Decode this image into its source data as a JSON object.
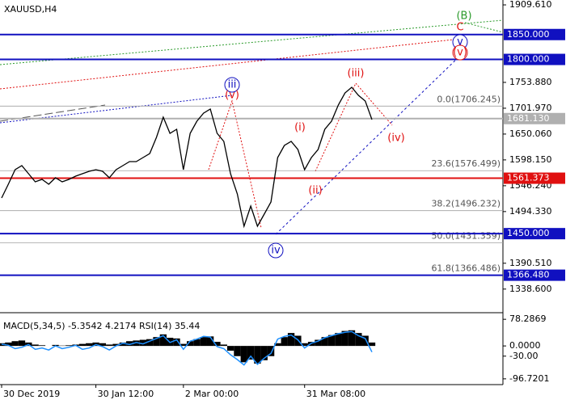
{
  "chart_data": {
    "type": "line",
    "title": "XAUUSD,H4",
    "categories": [
      "30 Dec 2019",
      null,
      null,
      null,
      null,
      null,
      null,
      null,
      null,
      null,
      null,
      null,
      null,
      null,
      "30 Jan 12:00",
      null,
      null,
      null,
      null,
      null,
      null,
      null,
      null,
      null,
      null,
      null,
      null,
      "2 Mar 00:00",
      null,
      null,
      null,
      null,
      null,
      null,
      null,
      null,
      null,
      null,
      null,
      null,
      null,
      null,
      null,
      null,
      null,
      "31 Mar 08:00",
      null,
      null,
      null,
      null,
      null,
      null,
      null,
      null,
      null,
      null
    ],
    "series": [
      {
        "color": "#000000",
        "values": [
          1521.6,
          1549.3,
          1578.5,
          1586.6,
          1570.4,
          1554.2,
          1559.0,
          1549.3,
          1562.3,
          1554.2,
          1559.0,
          1565.5,
          1570.4,
          1575.3,
          1578.5,
          1575.3,
          1562.3,
          1578.5,
          1586.6,
          1594.7,
          1594.7,
          1602.9,
          1611.0,
          1643.4,
          1684.0,
          1651.5,
          1659.7,
          1578.5,
          1651.5,
          1675.9,
          1692.1,
          1700.2,
          1651.5,
          1635.3,
          1570.4,
          1529.8,
          1464.9,
          1505.5,
          1464.9,
          1489.2,
          1513.6,
          1602.9,
          1627.2,
          1635.3,
          1619.1,
          1578.5,
          1602.9,
          1619.1,
          1659.7,
          1675.9,
          1708.3,
          1732.7,
          1744.1,
          1727.8,
          1716.5,
          1679.1
        ]
      }
    ],
    "ylim": [
      1294.4,
      1919.4
    ],
    "yticks": [
      {
        "value": 1909.61,
        "label": "1909.610"
      },
      {
        "value": 1753.88,
        "label": "1753.880"
      },
      {
        "value": 1701.97,
        "label": "1701.970"
      },
      {
        "value": 1650.06,
        "label": "1650.060"
      },
      {
        "value": 1598.15,
        "label": "1598.150"
      },
      {
        "value": 1546.24,
        "label": "1546.240"
      },
      {
        "value": 1494.33,
        "label": "1494.330"
      },
      {
        "value": 1390.51,
        "label": "1390.510"
      },
      {
        "value": 1338.6,
        "label": "1338.600"
      }
    ],
    "levels": [
      {
        "value": 1850,
        "label": "1850.000",
        "color": "#1010c0"
      },
      {
        "value": 1800,
        "label": "1800.000",
        "color": "#1010c0"
      },
      {
        "value": 1681.13,
        "label": "1681.130",
        "color": "#b0b0b0"
      },
      {
        "value": 1561.373,
        "label": "1561.373",
        "color": "#e01010"
      },
      {
        "value": 1450,
        "label": "1450.000",
        "color": "#1010c0"
      },
      {
        "value": 1366.48,
        "label": "1366.480",
        "color": "#1010c0"
      }
    ],
    "fibonacci": [
      {
        "value": 1706.245,
        "label": "0.0(1706.245)"
      },
      {
        "value": 1576.499,
        "label": "23.6(1576.499)"
      },
      {
        "value": 1496.232,
        "label": "38.2(1496.232)"
      },
      {
        "value": 1431.359,
        "label": "50.0(1431.359)"
      },
      {
        "value": 1366.486,
        "label": "61.8(1366.486)"
      }
    ],
    "annotations": [
      "(B)",
      "C",
      "v",
      "(v)",
      "iii",
      "(v)",
      "(iii)",
      "(i)",
      "(ii)",
      "(iv)",
      "iv"
    ],
    "indicator": {
      "type": "bar",
      "label": "MACD(5,34,5) -5.3542 4.2174 RSI(14) 35.44",
      "ylim": [
        -111.3,
        95.3
      ],
      "yticks": [
        78.2869,
        {
          "value": 0,
          "label": "0.0000"
        },
        {
          "value": -30,
          "label": "-30.00"
        },
        -96.7201
      ],
      "values": [
        8,
        10,
        14,
        16,
        10,
        4,
        2,
        0,
        3,
        1,
        2,
        4,
        6,
        8,
        10,
        8,
        4,
        6,
        10,
        14,
        16,
        18,
        20,
        26,
        34,
        24,
        22,
        6,
        14,
        20,
        26,
        28,
        12,
        4,
        -14,
        -30,
        -48,
        -40,
        -52,
        -42,
        -30,
        8,
        26,
        38,
        30,
        8,
        12,
        18,
        26,
        32,
        38,
        44,
        46,
        38,
        30,
        10
      ],
      "line": {
        "color": "#1e90ff",
        "values": [
          5,
          2,
          -8,
          -4,
          4,
          -10,
          -6,
          -12,
          0,
          -8,
          -4,
          2,
          -10,
          -6,
          4,
          -2,
          -12,
          0,
          8,
          4,
          10,
          6,
          14,
          22,
          30,
          10,
          18,
          -10,
          14,
          20,
          28,
          26,
          -2,
          -8,
          -26,
          -40,
          -56,
          -30,
          -54,
          -36,
          -22,
          20,
          28,
          32,
          18,
          -6,
          8,
          14,
          24,
          30,
          36,
          40,
          42,
          30,
          22,
          -18
        ]
      }
    }
  }
}
